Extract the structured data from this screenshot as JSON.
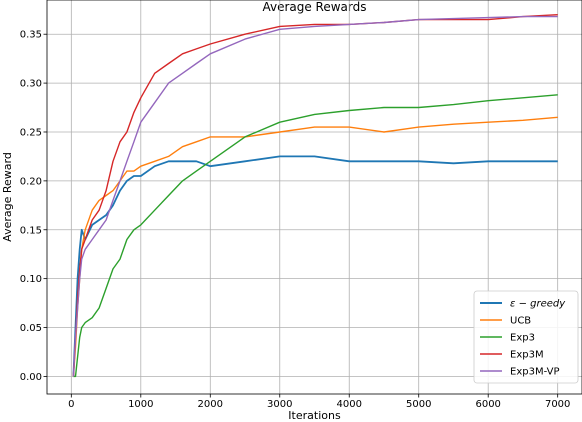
{
  "chart_data": {
    "type": "line",
    "title": "Average Rewards",
    "xlabel": "Iterations",
    "ylabel": "Average Reward",
    "xlim": [
      -350,
      7350
    ],
    "ylim": [
      -0.018,
      0.385
    ],
    "x_ticks": [
      0,
      1000,
      2000,
      3000,
      4000,
      5000,
      6000,
      7000
    ],
    "y_ticks": [
      0.0,
      0.05,
      0.1,
      0.15,
      0.2,
      0.25,
      0.3,
      0.35
    ],
    "x_tick_labels": [
      "0",
      "1000",
      "2000",
      "3000",
      "4000",
      "5000",
      "6000",
      "7000"
    ],
    "y_tick_labels": [
      "0.00",
      "0.05",
      "0.10",
      "0.15",
      "0.20",
      "0.25",
      "0.30",
      "0.35"
    ],
    "grid": true,
    "legend_position": "lower-right",
    "series": [
      {
        "name": "ε − greedy",
        "color": "#1f77b4",
        "x": [
          30,
          60,
          90,
          120,
          150,
          200,
          300,
          400,
          500,
          600,
          700,
          800,
          900,
          1000,
          1200,
          1400,
          1600,
          1800,
          2000,
          2500,
          3000,
          3500,
          4000,
          4500,
          5000,
          5500,
          6000,
          6500,
          7000
        ],
        "y": [
          0.0,
          0.05,
          0.1,
          0.13,
          0.15,
          0.14,
          0.155,
          0.16,
          0.165,
          0.175,
          0.19,
          0.2,
          0.205,
          0.205,
          0.215,
          0.22,
          0.22,
          0.22,
          0.215,
          0.22,
          0.225,
          0.225,
          0.22,
          0.22,
          0.22,
          0.218,
          0.22,
          0.22,
          0.22
        ]
      },
      {
        "name": "UCB",
        "color": "#ff7f0e",
        "x": [
          30,
          60,
          90,
          120,
          150,
          200,
          300,
          400,
          500,
          600,
          700,
          800,
          900,
          1000,
          1200,
          1400,
          1600,
          1800,
          2000,
          2500,
          3000,
          3500,
          4000,
          4500,
          5000,
          5500,
          6000,
          6500,
          7000
        ],
        "y": [
          0.0,
          0.03,
          0.07,
          0.1,
          0.13,
          0.15,
          0.17,
          0.18,
          0.185,
          0.19,
          0.2,
          0.21,
          0.21,
          0.215,
          0.22,
          0.225,
          0.235,
          0.24,
          0.245,
          0.245,
          0.25,
          0.255,
          0.255,
          0.25,
          0.255,
          0.258,
          0.26,
          0.262,
          0.265
        ]
      },
      {
        "name": "Exp3",
        "color": "#2ca02c",
        "x": [
          30,
          60,
          90,
          120,
          150,
          200,
          300,
          400,
          500,
          600,
          700,
          800,
          900,
          1000,
          1200,
          1400,
          1600,
          1800,
          2000,
          2500,
          3000,
          3500,
          4000,
          4500,
          5000,
          5500,
          6000,
          6500,
          7000
        ],
        "y": [
          0.0,
          0.0,
          0.02,
          0.04,
          0.05,
          0.055,
          0.06,
          0.07,
          0.09,
          0.11,
          0.12,
          0.14,
          0.15,
          0.155,
          0.17,
          0.185,
          0.2,
          0.21,
          0.22,
          0.245,
          0.26,
          0.268,
          0.272,
          0.275,
          0.275,
          0.278,
          0.282,
          0.285,
          0.288
        ]
      },
      {
        "name": "Exp3M",
        "color": "#d62728",
        "x": [
          30,
          60,
          90,
          120,
          150,
          200,
          300,
          400,
          500,
          600,
          700,
          800,
          900,
          1000,
          1200,
          1400,
          1600,
          1800,
          2000,
          2500,
          3000,
          3500,
          4000,
          4500,
          5000,
          5500,
          6000,
          6500,
          7000
        ],
        "y": [
          0.0,
          0.04,
          0.08,
          0.11,
          0.13,
          0.14,
          0.16,
          0.17,
          0.19,
          0.22,
          0.24,
          0.25,
          0.27,
          0.285,
          0.31,
          0.32,
          0.33,
          0.335,
          0.34,
          0.35,
          0.358,
          0.36,
          0.36,
          0.362,
          0.365,
          0.365,
          0.365,
          0.368,
          0.37
        ]
      },
      {
        "name": "Exp3M-VP",
        "color": "#9467bd",
        "x": [
          30,
          60,
          90,
          120,
          150,
          200,
          300,
          400,
          500,
          600,
          700,
          800,
          900,
          1000,
          1200,
          1400,
          1600,
          1800,
          2000,
          2500,
          3000,
          3500,
          4000,
          4500,
          5000,
          5500,
          6000,
          6500,
          7000
        ],
        "y": [
          0.0,
          0.04,
          0.07,
          0.1,
          0.12,
          0.13,
          0.14,
          0.15,
          0.16,
          0.18,
          0.2,
          0.22,
          0.24,
          0.26,
          0.28,
          0.3,
          0.31,
          0.32,
          0.33,
          0.345,
          0.355,
          0.358,
          0.36,
          0.362,
          0.365,
          0.366,
          0.367,
          0.368,
          0.368
        ]
      }
    ]
  }
}
